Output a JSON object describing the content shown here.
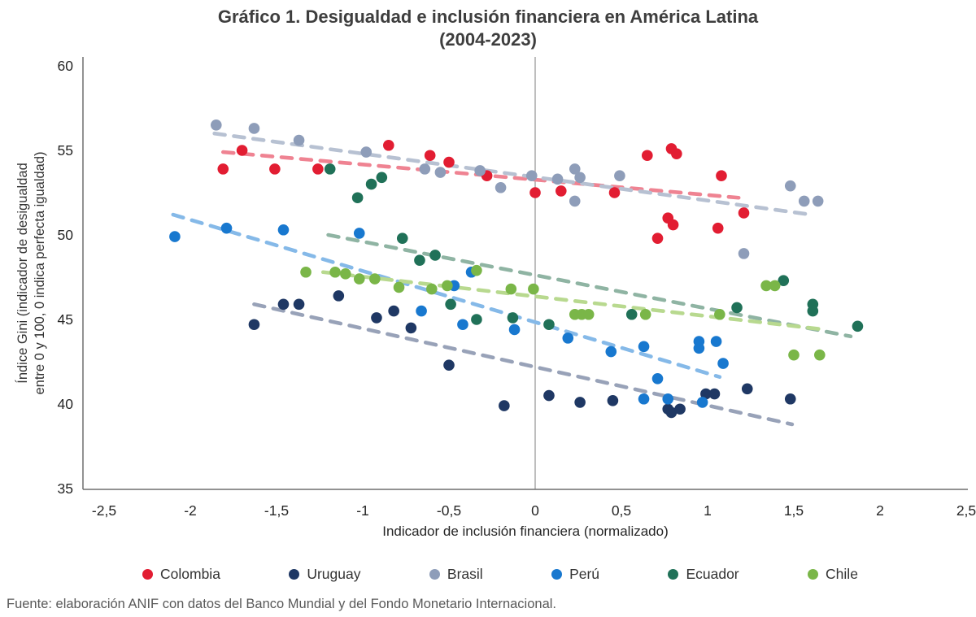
{
  "title": {
    "line1": "Gráfico 1. Desigualdad e inclusión financiera en América Latina",
    "line2": "(2004-2023)"
  },
  "source": "Fuente: elaboración ANIF con datos del Banco Mundial y del Fondo Monetario Internacional.",
  "axes": {
    "x": {
      "label": "Indicador de inclusión financiera (normalizado)",
      "ticks": [
        {
          "v": -2.5,
          "label": "-2,5"
        },
        {
          "v": -2,
          "label": "-2"
        },
        {
          "v": -1.5,
          "label": "-1,5"
        },
        {
          "v": -1,
          "label": "-1"
        },
        {
          "v": -0.5,
          "label": "-0,5"
        },
        {
          "v": 0,
          "label": "0"
        },
        {
          "v": 0.5,
          "label": "0,5"
        },
        {
          "v": 1,
          "label": "1"
        },
        {
          "v": 1.5,
          "label": "1,5"
        },
        {
          "v": 2,
          "label": "2"
        },
        {
          "v": 2.5,
          "label": "2,5"
        }
      ]
    },
    "y": {
      "label_line1": "Índice Gini (indicador de desigualdad",
      "label_line2": "entre 0 y 100, 0 indica perfecta igualdad)",
      "ticks": [
        {
          "v": 60,
          "label": "60"
        },
        {
          "v": 55,
          "label": "55"
        },
        {
          "v": 50,
          "label": "50"
        },
        {
          "v": 45,
          "label": "45"
        },
        {
          "v": 40,
          "label": "40"
        },
        {
          "v": 35,
          "label": "35"
        }
      ]
    }
  },
  "chart_data": {
    "type": "scatter",
    "title": "Gráfico 1. Desigualdad e inclusión financiera en América Latina (2004-2023)",
    "xlabel": "Indicador de inclusión financiera (normalizado)",
    "ylabel": "Índice Gini (indicador de desigualdad entre 0 y 100, 0 indica perfecta igualdad)",
    "xlim": [
      -2.5,
      2.5
    ],
    "ylim": [
      35,
      60
    ],
    "grid": "single vertical reference line at x=0",
    "legend_position": "bottom",
    "zero_line_color": "#9c9c9c",
    "axis_color": "#6f6f6f",
    "series": [
      {
        "name": "Colombia",
        "color": "#e21d32",
        "trend_color": "#ef8392",
        "trend": [
          -1.81,
          54.9,
          1.18,
          52.2
        ],
        "points": [
          [
            -1.81,
            53.9
          ],
          [
            -1.7,
            55.0
          ],
          [
            -1.51,
            53.9
          ],
          [
            -1.26,
            53.9
          ],
          [
            -0.85,
            55.3
          ],
          [
            -0.61,
            54.7
          ],
          [
            -0.5,
            54.3
          ],
          [
            -0.28,
            53.5
          ],
          [
            0.0,
            52.5
          ],
          [
            0.15,
            52.6
          ],
          [
            0.46,
            52.5
          ],
          [
            0.65,
            54.7
          ],
          [
            0.79,
            55.1
          ],
          [
            0.82,
            54.8
          ],
          [
            0.71,
            49.8
          ],
          [
            0.77,
            51.0
          ],
          [
            0.8,
            50.6
          ],
          [
            1.06,
            50.4
          ],
          [
            1.08,
            53.5
          ],
          [
            1.21,
            51.3
          ]
        ]
      },
      {
        "name": "Uruguay",
        "color": "#1f3864",
        "trend_color": "#98a2b8",
        "trend": [
          -1.63,
          45.9,
          1.49,
          38.8
        ],
        "points": [
          [
            -1.63,
            44.7
          ],
          [
            -1.46,
            45.9
          ],
          [
            -1.37,
            45.9
          ],
          [
            -1.14,
            46.4
          ],
          [
            -0.92,
            45.1
          ],
          [
            -0.82,
            45.5
          ],
          [
            -0.72,
            44.5
          ],
          [
            -0.5,
            42.3
          ],
          [
            -0.18,
            39.9
          ],
          [
            0.08,
            40.5
          ],
          [
            0.26,
            40.1
          ],
          [
            0.45,
            40.2
          ],
          [
            0.77,
            39.7
          ],
          [
            0.79,
            39.5
          ],
          [
            0.84,
            39.7
          ],
          [
            0.99,
            40.6
          ],
          [
            1.04,
            40.6
          ],
          [
            1.23,
            40.9
          ],
          [
            1.48,
            40.3
          ]
        ]
      },
      {
        "name": "Brasil",
        "color": "#8e9db9",
        "trend_color": "#b7c1d2",
        "trend": [
          -1.86,
          56.0,
          1.6,
          51.2
        ],
        "points": [
          [
            -1.85,
            56.5
          ],
          [
            -1.63,
            56.3
          ],
          [
            -1.37,
            55.6
          ],
          [
            -0.98,
            54.9
          ],
          [
            -0.64,
            53.9
          ],
          [
            -0.55,
            53.7
          ],
          [
            -0.32,
            53.8
          ],
          [
            -0.2,
            52.8
          ],
          [
            -0.02,
            53.5
          ],
          [
            0.13,
            53.3
          ],
          [
            0.23,
            53.9
          ],
          [
            0.26,
            53.4
          ],
          [
            0.23,
            52.0
          ],
          [
            0.49,
            53.5
          ],
          [
            1.21,
            48.9
          ],
          [
            1.48,
            52.9
          ],
          [
            1.56,
            52.0
          ],
          [
            1.64,
            52.0
          ]
        ]
      },
      {
        "name": "Perú",
        "color": "#1878cf",
        "trend_color": "#85b9e8",
        "trend": [
          -2.1,
          51.2,
          1.07,
          41.6
        ],
        "points": [
          [
            -2.09,
            49.9
          ],
          [
            -1.79,
            50.4
          ],
          [
            -1.46,
            50.3
          ],
          [
            -1.02,
            50.1
          ],
          [
            -0.66,
            45.5
          ],
          [
            -0.47,
            47.0
          ],
          [
            -0.37,
            47.8
          ],
          [
            -0.42,
            44.7
          ],
          [
            -0.12,
            44.4
          ],
          [
            0.19,
            43.9
          ],
          [
            0.44,
            43.1
          ],
          [
            0.63,
            43.4
          ],
          [
            0.63,
            40.3
          ],
          [
            0.71,
            41.5
          ],
          [
            0.77,
            40.3
          ],
          [
            0.95,
            43.7
          ],
          [
            0.95,
            43.3
          ],
          [
            0.97,
            40.1
          ],
          [
            1.05,
            43.7
          ],
          [
            1.09,
            42.4
          ]
        ]
      },
      {
        "name": "Ecuador",
        "color": "#207158",
        "trend_color": "#8fb4a3",
        "trend": [
          -1.2,
          50.0,
          1.83,
          44.0
        ],
        "points": [
          [
            -1.19,
            53.9
          ],
          [
            -1.03,
            52.2
          ],
          [
            -0.95,
            53.0
          ],
          [
            -0.89,
            53.4
          ],
          [
            -0.77,
            49.8
          ],
          [
            -0.67,
            48.5
          ],
          [
            -0.58,
            48.8
          ],
          [
            -0.49,
            45.9
          ],
          [
            -0.34,
            45.0
          ],
          [
            -0.13,
            45.1
          ],
          [
            0.08,
            44.7
          ],
          [
            0.56,
            45.3
          ],
          [
            1.17,
            45.7
          ],
          [
            1.44,
            47.3
          ],
          [
            1.61,
            45.9
          ],
          [
            1.61,
            45.5
          ],
          [
            1.87,
            44.6
          ]
        ]
      },
      {
        "name": "Chile",
        "color": "#7ab648",
        "trend_color": "#b8d98f",
        "trend": [
          -1.23,
          47.8,
          1.68,
          44.4
        ],
        "points": [
          [
            -1.33,
            47.8
          ],
          [
            -1.16,
            47.8
          ],
          [
            -1.1,
            47.7
          ],
          [
            -1.02,
            47.4
          ],
          [
            -0.93,
            47.4
          ],
          [
            -0.79,
            46.9
          ],
          [
            -0.6,
            46.8
          ],
          [
            -0.51,
            47.0
          ],
          [
            -0.34,
            47.9
          ],
          [
            -0.14,
            46.8
          ],
          [
            -0.01,
            46.8
          ],
          [
            0.23,
            45.3
          ],
          [
            0.27,
            45.3
          ],
          [
            0.31,
            45.3
          ],
          [
            0.64,
            45.3
          ],
          [
            1.07,
            45.3
          ],
          [
            1.34,
            47.0
          ],
          [
            1.39,
            47.0
          ],
          [
            1.5,
            42.9
          ],
          [
            1.65,
            42.9
          ]
        ]
      }
    ]
  }
}
